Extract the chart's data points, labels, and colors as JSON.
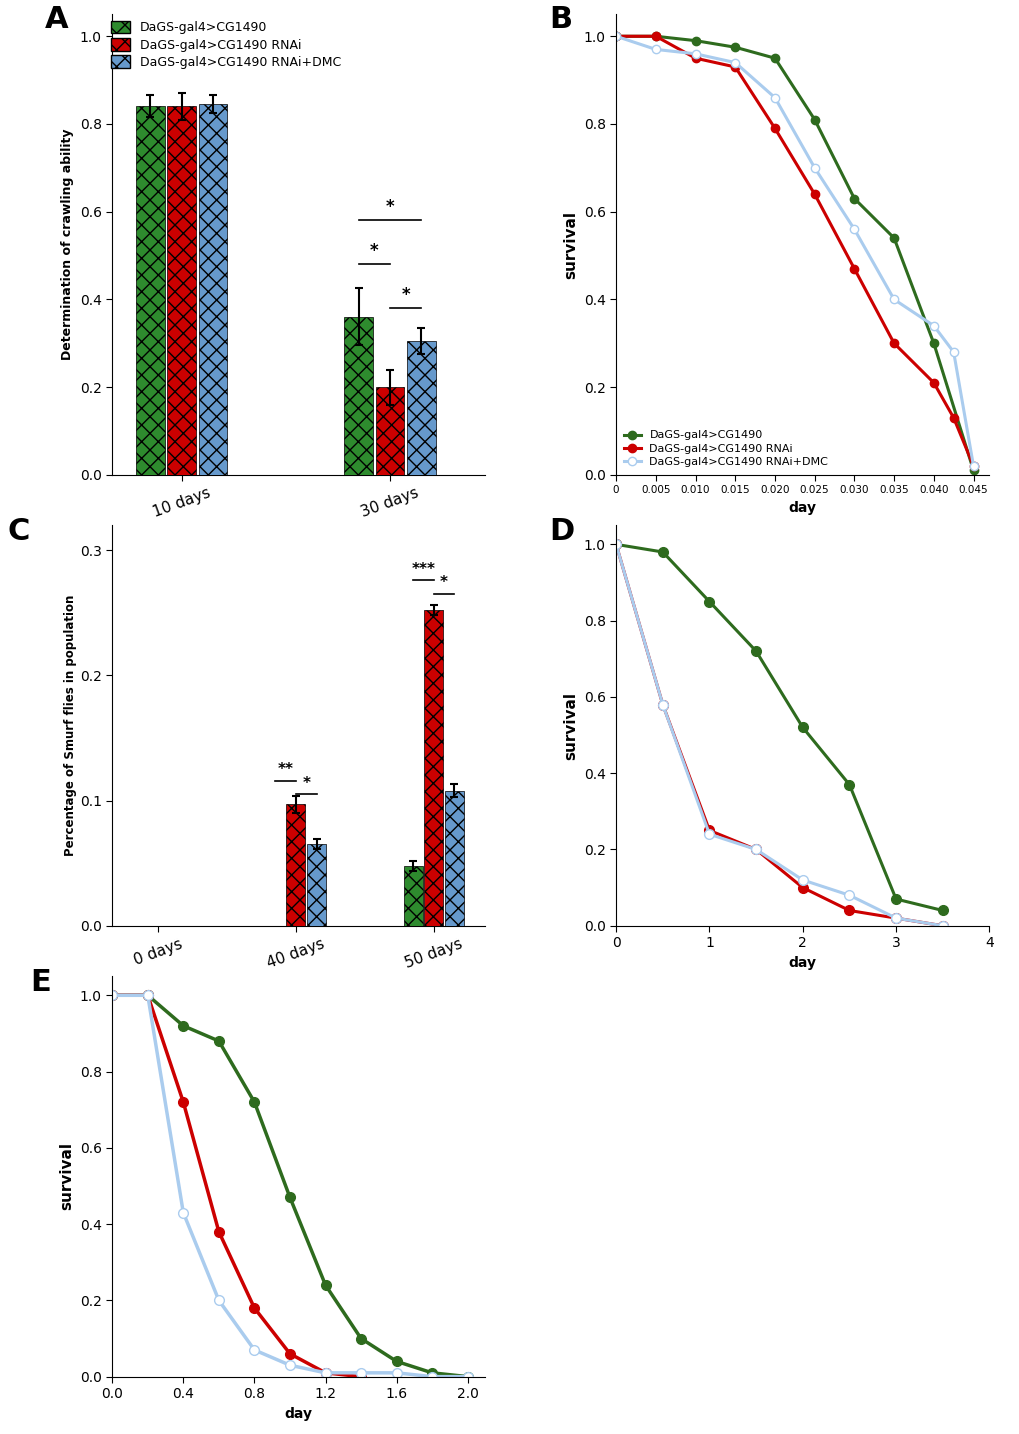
{
  "panel_A": {
    "ylabel": "Determination of crawling ability",
    "groups": [
      "10 days",
      "30 days"
    ],
    "series": [
      "DaGS-gal4>CG1490",
      "DaGS-gal4>CG1490 RNAi",
      "DaGS-gal4>CG1490 RNAi+DMC"
    ],
    "colors": [
      "#2e8b2e",
      "#cc0000",
      "#6699cc"
    ],
    "values": [
      [
        0.84,
        0.84,
        0.845
      ],
      [
        0.36,
        0.2,
        0.305
      ]
    ],
    "errors": [
      [
        0.025,
        0.03,
        0.02
      ],
      [
        0.065,
        0.04,
        0.03
      ]
    ],
    "ylim": [
      0.0,
      1.05
    ],
    "yticks": [
      0.0,
      0.2,
      0.4,
      0.6,
      0.8,
      1.0
    ]
  },
  "panel_B": {
    "ylabel": "survival",
    "xlabel": "day",
    "legend_labels": [
      "DaGS-gal4>CG1490",
      "DaGS-gal4>CG1490 RNAi",
      "DaGS-gal4>CG1490 RNAi+DMC"
    ],
    "colors": [
      "#2e6b1e",
      "#cc0000",
      "#aaccee"
    ],
    "green_x": [
      0,
      0.005,
      0.01,
      0.015,
      0.02,
      0.025,
      0.03,
      0.035,
      0.04,
      0.045
    ],
    "green_y": [
      1.0,
      1.0,
      0.99,
      0.975,
      0.95,
      0.81,
      0.63,
      0.54,
      0.3,
      0.01
    ],
    "red_x": [
      0,
      0.005,
      0.01,
      0.015,
      0.02,
      0.025,
      0.03,
      0.035,
      0.04,
      0.0425,
      0.045
    ],
    "red_y": [
      1.0,
      1.0,
      0.95,
      0.93,
      0.79,
      0.64,
      0.47,
      0.3,
      0.21,
      0.13,
      0.02
    ],
    "blue_x": [
      0,
      0.005,
      0.01,
      0.015,
      0.02,
      0.025,
      0.03,
      0.035,
      0.04,
      0.0425,
      0.045
    ],
    "blue_y": [
      1.0,
      0.97,
      0.96,
      0.94,
      0.86,
      0.7,
      0.56,
      0.4,
      0.34,
      0.28,
      0.02
    ],
    "xlim": [
      0,
      0.047
    ],
    "xticks": [
      0,
      0.005,
      0.01,
      0.015,
      0.02,
      0.025,
      0.03,
      0.035,
      0.04,
      0.045
    ],
    "xticklabels": [
      "0",
      "0.005",
      "0.010",
      "0.015",
      "0.020",
      "0.025",
      "0.030",
      "0.035",
      "0.040",
      "0.045"
    ]
  },
  "panel_C": {
    "ylabel": "Percentage of Smurf flies in population",
    "groups": [
      "0 days",
      "40 days",
      "50 days"
    ],
    "series": [
      "DaGS-gal4>CG1490",
      "DaGS-gal4>CG1490 RNAi",
      "DaGS-gal4>CG1490 RNAi+DMC"
    ],
    "colors": [
      "#2e8b2e",
      "#cc0000",
      "#6699cc"
    ],
    "values": [
      [
        0.0,
        0.0,
        0.0
      ],
      [
        0.0,
        0.097,
        0.065
      ],
      [
        0.048,
        0.252,
        0.108
      ]
    ],
    "errors": [
      [
        0.0,
        0.0,
        0.0
      ],
      [
        0.0,
        0.007,
        0.004
      ],
      [
        0.004,
        0.004,
        0.005
      ]
    ],
    "ylim": [
      0.0,
      0.32
    ],
    "yticks": [
      0.0,
      0.1,
      0.2,
      0.3
    ]
  },
  "panel_D": {
    "ylabel": "survival",
    "xlabel": "day",
    "colors": [
      "#2e6b1e",
      "#cc0000",
      "#aaccee"
    ],
    "green_x": [
      0,
      0.5,
      1.0,
      1.5,
      2.0,
      2.5,
      3.0,
      3.5
    ],
    "green_y": [
      1.0,
      0.98,
      0.85,
      0.72,
      0.52,
      0.37,
      0.07,
      0.04
    ],
    "red_x": [
      0,
      0.5,
      1.0,
      1.5,
      2.0,
      2.5,
      3.0,
      3.5
    ],
    "red_y": [
      1.0,
      0.58,
      0.25,
      0.2,
      0.1,
      0.04,
      0.02,
      0.0
    ],
    "blue_x": [
      0,
      0.5,
      1.0,
      1.5,
      2.0,
      2.5,
      3.0,
      3.5
    ],
    "blue_y": [
      1.0,
      0.58,
      0.24,
      0.2,
      0.12,
      0.08,
      0.02,
      0.0
    ],
    "xlim": [
      0,
      4
    ],
    "xticks": [
      0,
      1,
      2,
      3,
      4
    ],
    "ylim": [
      0,
      1.05
    ]
  },
  "panel_E": {
    "ylabel": "survival",
    "xlabel": "day",
    "colors": [
      "#2e6b1e",
      "#cc0000",
      "#aaccee"
    ],
    "green_x": [
      0,
      0.2,
      0.4,
      0.6,
      0.8,
      1.0,
      1.2,
      1.4,
      1.6,
      1.8,
      2.0
    ],
    "green_y": [
      1.0,
      1.0,
      0.92,
      0.88,
      0.72,
      0.47,
      0.24,
      0.1,
      0.04,
      0.01,
      0.0
    ],
    "red_x": [
      0,
      0.2,
      0.4,
      0.6,
      0.8,
      1.0,
      1.2,
      1.4
    ],
    "red_y": [
      1.0,
      1.0,
      0.72,
      0.38,
      0.18,
      0.06,
      0.01,
      0.0
    ],
    "blue_x": [
      0,
      0.2,
      0.4,
      0.6,
      0.8,
      1.0,
      1.2,
      1.4,
      1.6,
      1.8,
      2.0
    ],
    "blue_y": [
      1.0,
      1.0,
      0.43,
      0.2,
      0.07,
      0.03,
      0.01,
      0.01,
      0.01,
      0.0,
      0.0
    ],
    "xlim": [
      0,
      2.1
    ],
    "xticks": [
      0,
      0.4,
      0.8,
      1.2,
      1.6,
      2.0
    ],
    "ylim": [
      0,
      1.05
    ]
  }
}
